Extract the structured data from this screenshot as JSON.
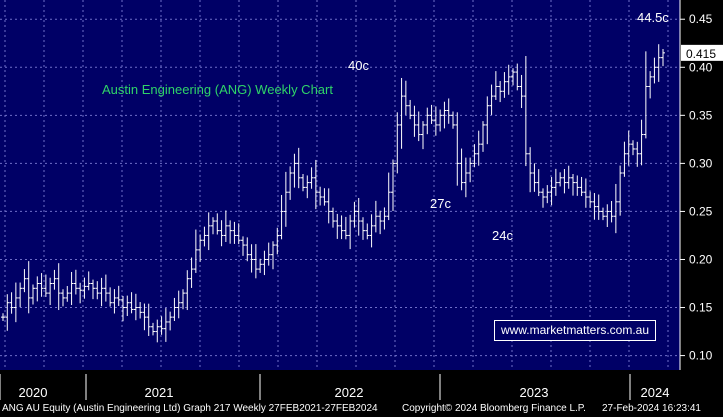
{
  "chart_data": {
    "type": "candlestick",
    "title": "Austin Engineering (ANG) Weekly Chart",
    "x_ticks": [
      "2020",
      "2021",
      "2022",
      "2023",
      "2024"
    ],
    "y_ticks": [
      "0.10",
      "0.15",
      "0.20",
      "0.25",
      "0.30",
      "0.35",
      "0.40",
      "0.45"
    ],
    "ylim": [
      0.085,
      0.47
    ],
    "grid": true,
    "last_price_label": "0.415",
    "annotations": [
      {
        "text": "40c",
        "value": 0.4
      },
      {
        "text": "27c",
        "value": 0.27
      },
      {
        "text": "24c",
        "value": 0.24
      },
      {
        "text": "44.5c",
        "value": 0.445
      }
    ],
    "weekly_closes": [
      0.14,
      0.155,
      0.15,
      0.16,
      0.17,
      0.18,
      0.16,
      0.17,
      0.175,
      0.17,
      0.165,
      0.175,
      0.18,
      0.165,
      0.16,
      0.165,
      0.175,
      0.17,
      0.168,
      0.172,
      0.175,
      0.17,
      0.165,
      0.17,
      0.165,
      0.155,
      0.16,
      0.158,
      0.15,
      0.155,
      0.148,
      0.15,
      0.145,
      0.14,
      0.13,
      0.125,
      0.13,
      0.128,
      0.135,
      0.14,
      0.15,
      0.155,
      0.165,
      0.18,
      0.19,
      0.21,
      0.22,
      0.225,
      0.235,
      0.24,
      0.23,
      0.225,
      0.235,
      0.23,
      0.225,
      0.22,
      0.215,
      0.205,
      0.2,
      0.19,
      0.195,
      0.2,
      0.205,
      0.215,
      0.225,
      0.25,
      0.27,
      0.29,
      0.3,
      0.285,
      0.275,
      0.28,
      0.285,
      0.27,
      0.265,
      0.26,
      0.25,
      0.24,
      0.235,
      0.23,
      0.225,
      0.24,
      0.25,
      0.24,
      0.23,
      0.225,
      0.235,
      0.245,
      0.24,
      0.245,
      0.27,
      0.3,
      0.34,
      0.37,
      0.36,
      0.35,
      0.34,
      0.33,
      0.34,
      0.35,
      0.345,
      0.34,
      0.35,
      0.355,
      0.35,
      0.34,
      0.3,
      0.28,
      0.29,
      0.3,
      0.31,
      0.32,
      0.34,
      0.36,
      0.37,
      0.38,
      0.375,
      0.385,
      0.39,
      0.395,
      0.38,
      0.37,
      0.31,
      0.29,
      0.28,
      0.27,
      0.265,
      0.27,
      0.275,
      0.28,
      0.285,
      0.28,
      0.285,
      0.28,
      0.275,
      0.27,
      0.265,
      0.26,
      0.255,
      0.25,
      0.245,
      0.25,
      0.245,
      0.26,
      0.29,
      0.31,
      0.32,
      0.315,
      0.31,
      0.33,
      0.38,
      0.39,
      0.4,
      0.41,
      0.415
    ]
  },
  "footer": {
    "left": "ANG AU Equity (Austin Engineering Ltd) Graph 217  Weekly 27FEB2021-27FEB2024",
    "center": "Copyright© 2024 Bloomberg Finance L.P.",
    "right": "27-Feb-2024 16:23:41"
  },
  "website": "www.marketmatters.com.au",
  "colors": {
    "background": "#000066",
    "grid": "#6f6fc8",
    "bars": "#ffffff",
    "title": "#2fd468"
  }
}
